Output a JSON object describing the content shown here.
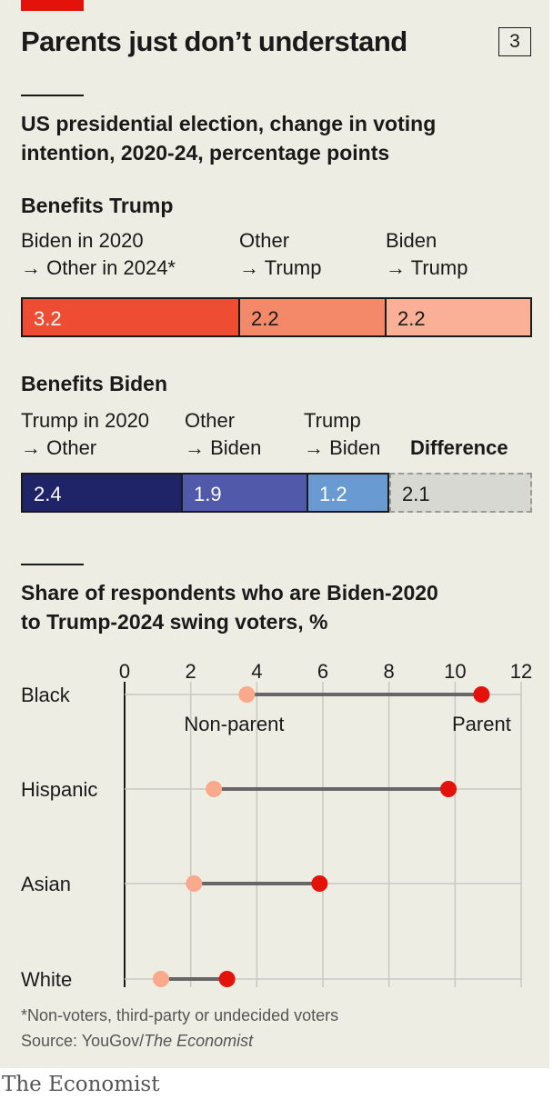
{
  "chart_number": "3",
  "title": "Parents just don’t understand",
  "subtitle": "US presidential election, change in voting\nintention, 2020-24, percentage points",
  "colors": {
    "trump_dark": "#ee4d33",
    "trump_mid": "#f4896a",
    "trump_light": "#f9b096",
    "biden_dark": "#1f2468",
    "biden_mid": "#5059aa",
    "biden_light": "#6a9ad2",
    "difference": "#d8d8d2",
    "nonparent": "#f9a98c",
    "parent": "#e3120b"
  },
  "chart_data": [
    {
      "type": "bar",
      "title": "Benefits Trump",
      "categories": [
        "Biden in 2020\n→ Other in 2024*",
        "Other\n→ Trump",
        "Biden\n→ Trump"
      ],
      "values": [
        3.2,
        2.2,
        2.2
      ],
      "labels": [
        "3.2",
        "2.2",
        "2.2"
      ]
    },
    {
      "type": "bar",
      "title": "Benefits Biden",
      "categories": [
        "Trump in 2020\n→ Other",
        "Other\n→ Biden",
        "Trump\n→ Biden",
        "Difference"
      ],
      "values": [
        2.4,
        1.9,
        1.2,
        2.1
      ],
      "labels": [
        "2.4",
        "1.9",
        "1.2",
        "2.1"
      ]
    },
    {
      "type": "scatter",
      "title": "Share of respondents who are Biden-2020\nto Trump-2024 swing voters, %",
      "categories": [
        "Black",
        "Hispanic",
        "Asian",
        "White"
      ],
      "series": [
        {
          "name": "Non-parent",
          "values": [
            3.7,
            2.7,
            2.1,
            1.1
          ]
        },
        {
          "name": "Parent",
          "values": [
            10.8,
            9.8,
            5.9,
            3.1
          ]
        }
      ],
      "xlim": [
        0,
        12
      ],
      "xticks": [
        0,
        2,
        4,
        6,
        8,
        10,
        12
      ],
      "grid": true
    }
  ],
  "footnote": "*Non-voters, third-party or undecided voters",
  "source": {
    "prefix": "Source: YouGov/",
    "publication": "The Economist"
  },
  "brand": "The Economist"
}
